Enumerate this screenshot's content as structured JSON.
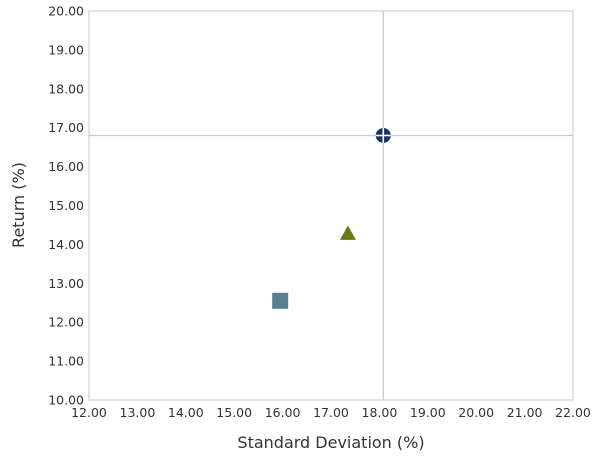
{
  "chart_data": {
    "type": "scatter",
    "xlabel": "Standard Deviation (%)",
    "ylabel": "Return (%)",
    "xlim": [
      12,
      22
    ],
    "ylim": [
      10,
      20
    ],
    "x_ticks": [
      "12.00",
      "13.00",
      "14.00",
      "15.00",
      "16.00",
      "17.00",
      "18.00",
      "19.00",
      "20.00",
      "21.00",
      "22.00"
    ],
    "y_ticks": [
      "10.00",
      "11.00",
      "12.00",
      "13.00",
      "14.00",
      "15.00",
      "16.00",
      "17.00",
      "18.00",
      "19.00",
      "20.00"
    ],
    "grid": false,
    "reference_lines": {
      "x": 18.08,
      "y": 16.8
    },
    "points": [
      {
        "x": 18.08,
        "y": 16.8,
        "marker": "crossed-circle",
        "color": "#14365d"
      },
      {
        "x": 17.35,
        "y": 14.28,
        "marker": "triangle",
        "color": "#6b7a14"
      },
      {
        "x": 15.95,
        "y": 12.55,
        "marker": "square",
        "color": "#587f95"
      }
    ]
  }
}
